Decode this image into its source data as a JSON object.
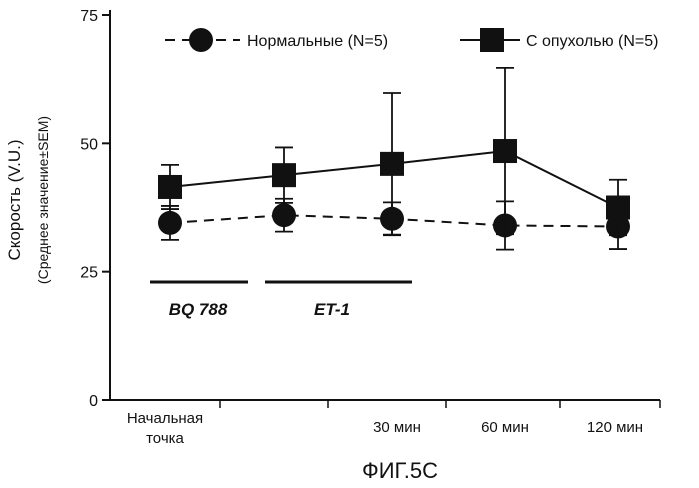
{
  "chart_data": {
    "type": "line",
    "title": "",
    "figure_caption": "ФИГ.5C",
    "ylabel": "Скорость (V.U.)",
    "ylabel_sub": "(Среднее значение±SEM)",
    "xlabel": "",
    "ylim": [
      0,
      75
    ],
    "yticks": [
      "0",
      "25",
      "50",
      "75"
    ],
    "x_tick_labels": [
      {
        "lines": [
          "Начальная",
          "точка"
        ]
      },
      {
        "lines": [
          "30 мин"
        ]
      },
      {
        "lines": [
          "60 мин"
        ]
      },
      {
        "lines": [
          "120 мин"
        ]
      }
    ],
    "grid": false,
    "legend_position": "top",
    "series": [
      {
        "name": "Нормальные (N=5)",
        "marker": "circle",
        "line": "dashed",
        "values": [
          34.5,
          36,
          35.3,
          34,
          33.8
        ],
        "errors": [
          3.3,
          3.2,
          3.2,
          4.7,
          4.4
        ]
      },
      {
        "name": "С опухолью (N=5)",
        "marker": "square",
        "line": "solid",
        "values": [
          41.5,
          43.8,
          46,
          48.5,
          37.5
        ],
        "errors": [
          4.3,
          5.4,
          13.8,
          16.2,
          5.4
        ]
      }
    ],
    "treatment_periods": [
      {
        "label": "BQ 788",
        "start": 0,
        "end": 1
      },
      {
        "label": "ET-1",
        "start": 1,
        "end": 2
      }
    ]
  }
}
